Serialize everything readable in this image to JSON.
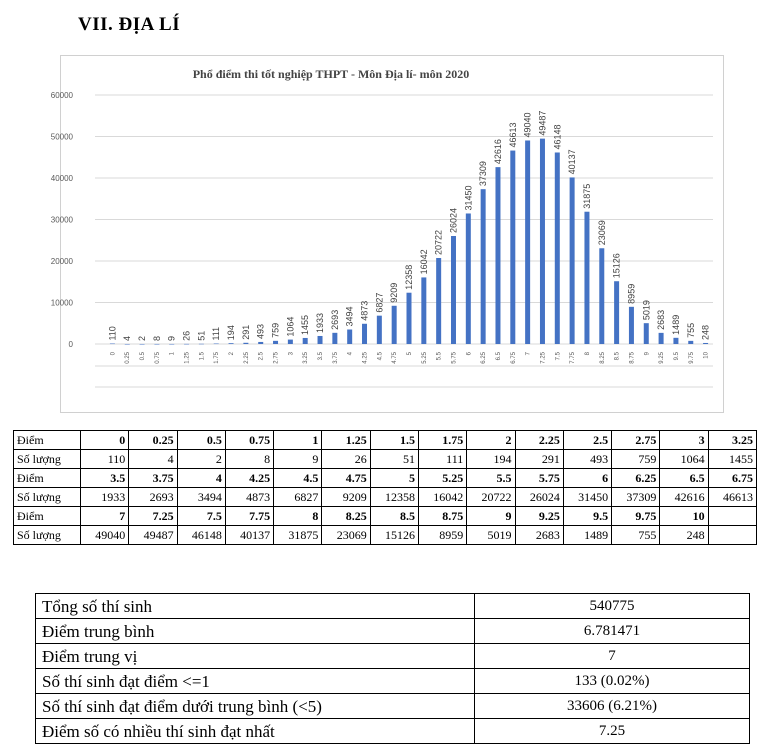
{
  "heading": "VII.   ĐỊA LÍ",
  "chart_data": {
    "type": "bar",
    "title": "Phổ điểm thi tốt nghiệp THPT - Môn Địa lí- môn 2020",
    "categories": [
      "0",
      "0.25",
      "0.5",
      "0.75",
      "1",
      "1.25",
      "1.5",
      "1.75",
      "2",
      "2.25",
      "2.5",
      "2.75",
      "3",
      "3.25",
      "3.5",
      "3.75",
      "4",
      "4.25",
      "4.5",
      "4.75",
      "5",
      "5.25",
      "5.5",
      "5.75",
      "6",
      "6.25",
      "6.5",
      "6.75",
      "7",
      "7.25",
      "7.5",
      "7.75",
      "8",
      "8.25",
      "8.5",
      "8.75",
      "9",
      "9.25",
      "9.5",
      "9.75",
      "10"
    ],
    "values": [
      110,
      4,
      2,
      8,
      9,
      26,
      51,
      111,
      194,
      291,
      493,
      759,
      1064,
      1455,
      1933,
      2693,
      3494,
      4873,
      6827,
      9209,
      12358,
      16042,
      20722,
      26024,
      31450,
      37309,
      42616,
      46613,
      49040,
      49487,
      46148,
      40137,
      31875,
      23069,
      15126,
      8959,
      5019,
      2683,
      1489,
      755,
      248
    ],
    "ylim": [
      0,
      60000
    ],
    "yticks": [
      "0",
      "10000",
      "20000",
      "30000",
      "40000",
      "50000",
      "60000"
    ],
    "grid": true,
    "bar_color": "#4472c4"
  },
  "table": {
    "rows": [
      {
        "label": "Điểm",
        "cells": [
          "0",
          "0.25",
          "0.5",
          "0.75",
          "1",
          "1.25",
          "1.5",
          "1.75",
          "2",
          "2.25",
          "2.5",
          "2.75",
          "3",
          "3.25"
        ]
      },
      {
        "label": "Số lượng",
        "cells": [
          "110",
          "4",
          "2",
          "8",
          "9",
          "26",
          "51",
          "111",
          "194",
          "291",
          "493",
          "759",
          "1064",
          "1455"
        ]
      },
      {
        "label": "Điểm",
        "cells": [
          "3.5",
          "3.75",
          "4",
          "4.25",
          "4.5",
          "4.75",
          "5",
          "5.25",
          "5.5",
          "5.75",
          "6",
          "6.25",
          "6.5",
          "6.75"
        ]
      },
      {
        "label": "Số lượng",
        "cells": [
          "1933",
          "2693",
          "3494",
          "4873",
          "6827",
          "9209",
          "12358",
          "16042",
          "20722",
          "26024",
          "31450",
          "37309",
          "42616",
          "46613"
        ]
      },
      {
        "label": "Điểm",
        "cells": [
          "7",
          "7.25",
          "7.5",
          "7.75",
          "8",
          "8.25",
          "8.5",
          "8.75",
          "9",
          "9.25",
          "9.5",
          "9.75",
          "10",
          ""
        ]
      },
      {
        "label": "Số lượng",
        "cells": [
          "49040",
          "49487",
          "46148",
          "40137",
          "31875",
          "23069",
          "15126",
          "8959",
          "5019",
          "2683",
          "1489",
          "755",
          "248",
          ""
        ]
      }
    ]
  },
  "summary": [
    {
      "label": "Tổng số thí sinh",
      "value": "540775"
    },
    {
      "label": "Điểm trung bình",
      "value": "6.781471"
    },
    {
      "label": "Điểm trung vị",
      "value": "7"
    },
    {
      "label": "Số thí sinh đạt điểm <=1",
      "value": "133 (0.02%)"
    },
    {
      "label": "Số thí sinh đạt điểm dưới trung bình (<5)",
      "value": "33606 (6.21%)"
    },
    {
      "label": "Điểm số có nhiều thí sinh đạt nhất",
      "value": "7.25"
    }
  ]
}
